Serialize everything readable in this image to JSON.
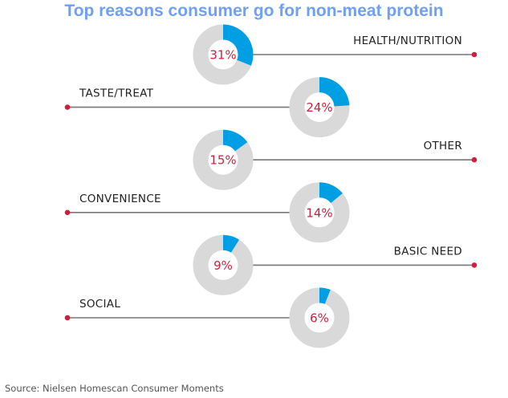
{
  "colors": {
    "title": "#6fa0f5",
    "segment": "#009fe3",
    "track": "#d9d9d9",
    "percent_text": "#d01f3c",
    "connector": "#777777",
    "endpoint": "#d01f3c",
    "label_text": "#222222"
  },
  "chart_data": {
    "type": "pie",
    "variant": "donut-list",
    "title": "Top reasons consumer go for non-meat protein",
    "unit": "%",
    "categories": [
      "HEALTH/NUTRITION",
      "TASTE/TREAT",
      "OTHER",
      "CONVENIENCE",
      "BASIC NEED",
      "SOCIAL"
    ],
    "values": [
      31,
      24,
      15,
      14,
      9,
      6
    ],
    "labels": [
      "31%",
      "24%",
      "15%",
      "14%",
      "9%",
      "6%"
    ],
    "label_sides": [
      "right",
      "left",
      "right",
      "left",
      "right",
      "left"
    ],
    "source": "Source: Nielsen Homescan Consumer Moments"
  }
}
